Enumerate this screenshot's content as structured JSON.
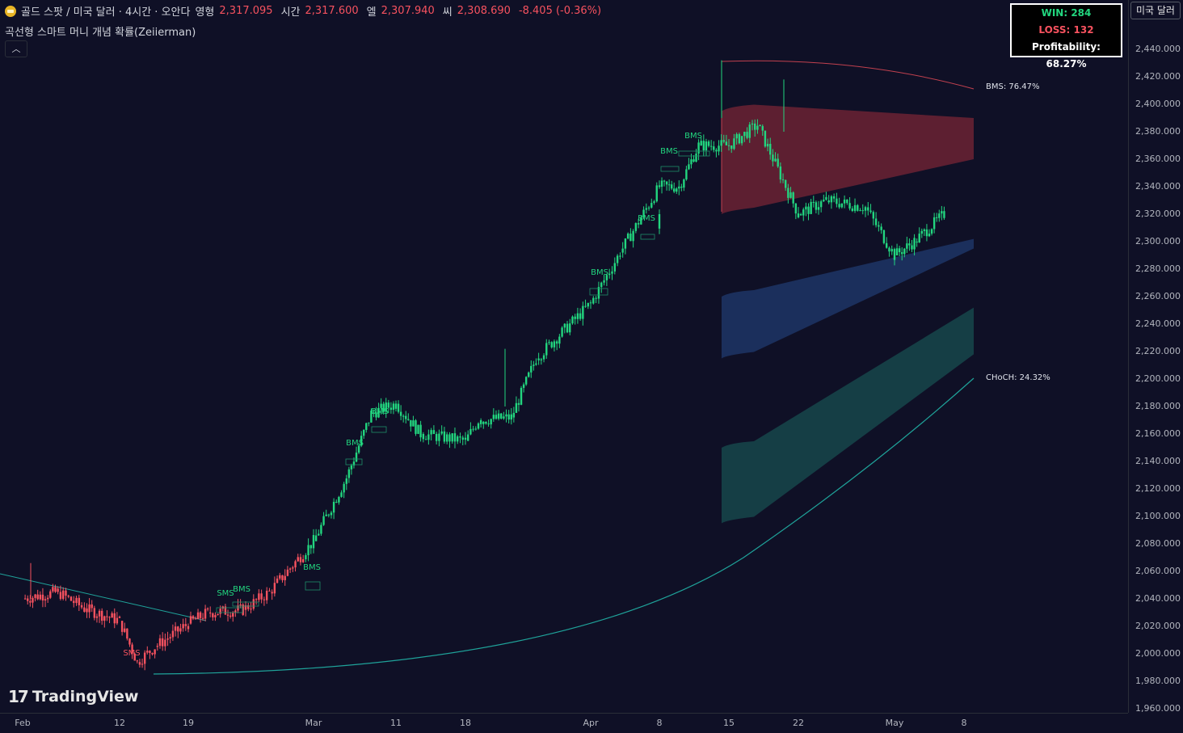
{
  "header": {
    "symbol": "골드 스팟 / 미국 달러 · 4시간 · 오안다",
    "open_label": "영형",
    "open_value": "2,317.095",
    "high_label": "시간",
    "high_value": "2,317.600",
    "low_label": "엘",
    "low_value": "2,307.940",
    "close_label": "씨",
    "close_value": "2,308.690",
    "change": "-8.405 (-0.36%)"
  },
  "indicator": {
    "name": "곡선형 스마트 머니 개념 확률(Zeiierman)"
  },
  "stats": {
    "win": "WIN: 284",
    "loss": "LOSS: 132",
    "profitability": "Profitability: 68.27%"
  },
  "currency_button": "미국 달러",
  "branding": {
    "logo_text": "TradingView"
  },
  "probabilities": {
    "bms": "BMS: 76.47%",
    "choch": "CHoCH: 24.32%"
  },
  "y_axis": {
    "labels": [
      "2,440.000",
      "2,420.000",
      "2,400.000",
      "2,380.000",
      "2,360.000",
      "2,340.000",
      "2,320.000",
      "2,300.000",
      "2,280.000",
      "2,260.000",
      "2,240.000",
      "2,220.000",
      "2,200.000",
      "2,180.000",
      "2,160.000",
      "2,140.000",
      "2,120.000",
      "2,100.000",
      "2,080.000",
      "2,060.000",
      "2,040.000",
      "2,020.000",
      "2,000.000",
      "1,980.000",
      "1,960.000"
    ]
  },
  "x_axis": {
    "labels": [
      "Feb",
      "12",
      "19",
      "Mar",
      "11",
      "18",
      "Apr",
      "8",
      "15",
      "22",
      "May",
      "8"
    ]
  },
  "colors": {
    "up": "#22d67f",
    "down": "#f7525f",
    "background": "#0f1026",
    "bms_band": "#6b2234",
    "blue_band": "#1d3566",
    "teal_band": "#16464b",
    "teal_line": "#1fa39a"
  },
  "chart_data": {
    "type": "candlestick",
    "title": "골드 스팟 / 미국 달러 · 4시간 · 오안다",
    "ylim": [
      1955,
      2455
    ],
    "x_ticks": [
      "Feb",
      "12",
      "19",
      "Mar",
      "11",
      "18",
      "Apr",
      "8",
      "15",
      "22",
      "May",
      "8"
    ],
    "price_path": [
      {
        "x": "Feb",
        "price": 2040
      },
      {
        "x": "Feb 5",
        "price": 2045
      },
      {
        "x": "Feb 8",
        "price": 2033
      },
      {
        "x": "12",
        "price": 2024
      },
      {
        "x": "Feb 14",
        "price": 1994
      },
      {
        "x": "Feb 16",
        "price": 2005
      },
      {
        "x": "19",
        "price": 2022
      },
      {
        "x": "Feb 22",
        "price": 2030
      },
      {
        "x": "Feb 26",
        "price": 2032
      },
      {
        "x": "Feb 29",
        "price": 2045
      },
      {
        "x": "Mar",
        "price": 2082
      },
      {
        "x": "Mar 5",
        "price": 2128
      },
      {
        "x": "Mar 8",
        "price": 2175
      },
      {
        "x": "11",
        "price": 2182
      },
      {
        "x": "Mar 14",
        "price": 2160
      },
      {
        "x": "18",
        "price": 2155
      },
      {
        "x": "Mar 21",
        "price": 2170
      },
      {
        "x": "Mar 25",
        "price": 2172
      },
      {
        "x": "Mar 28",
        "price": 2215
      },
      {
        "x": "Apr",
        "price": 2255
      },
      {
        "x": "Apr 4",
        "price": 2292
      },
      {
        "x": "8",
        "price": 2340
      },
      {
        "x": "Apr 10",
        "price": 2340
      },
      {
        "x": "Apr 12",
        "price": 2370
      },
      {
        "x": "15",
        "price": 2370
      },
      {
        "x": "Apr 18",
        "price": 2385
      },
      {
        "x": "22",
        "price": 2320
      },
      {
        "x": "Apr 25",
        "price": 2330
      },
      {
        "x": "Apr 29",
        "price": 2325
      },
      {
        "x": "May",
        "price": 2290
      },
      {
        "x": "May 3",
        "price": 2300
      },
      {
        "x": "May 6",
        "price": 2320
      },
      {
        "x": "8",
        "price": 2313
      }
    ],
    "labels": [
      "SMS",
      "SMS",
      "BMS",
      "BMS",
      "BMS",
      "BMS",
      "BMS",
      "BMS",
      "BMS",
      "BMS",
      "BMS"
    ],
    "projection_bands": [
      {
        "name": "BMS",
        "upper": [
          2395,
          2390
        ],
        "lower": [
          2320,
          2360
        ]
      },
      {
        "name": "blue",
        "upper": [
          2260,
          2302
        ],
        "lower": [
          2215,
          2295
        ]
      },
      {
        "name": "teal",
        "upper": [
          2150,
          2252
        ],
        "lower": [
          2095,
          2218
        ]
      }
    ]
  }
}
